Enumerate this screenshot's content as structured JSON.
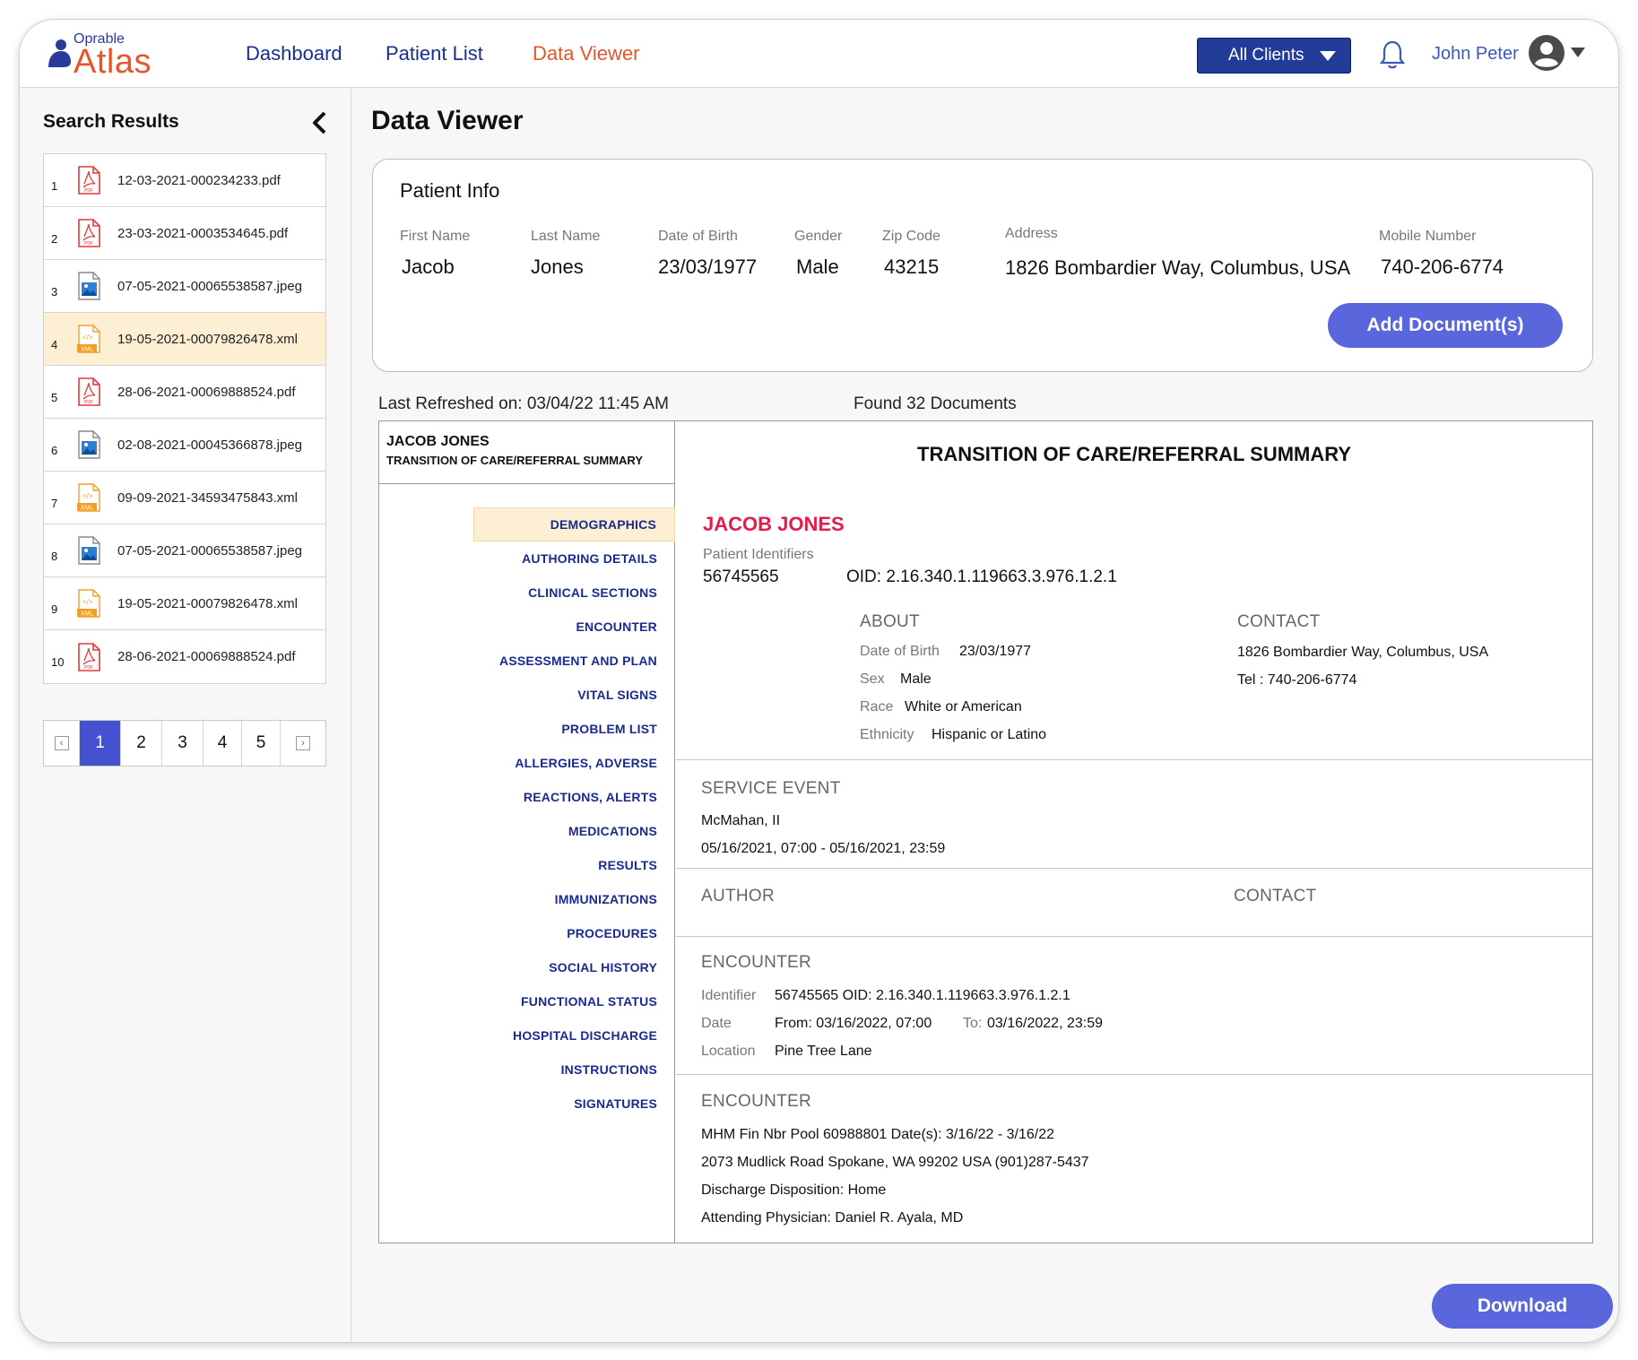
{
  "brand": {
    "top": "Oprable",
    "name": "Atlas",
    "accent": "#e4572e",
    "navy": "#1a2d8c"
  },
  "nav": [
    {
      "label": "Dashboard",
      "active": false
    },
    {
      "label": "Patient List",
      "active": false
    },
    {
      "label": "Data Viewer",
      "active": true
    }
  ],
  "header": {
    "client_select": "All Clients",
    "user_name": "John Peter"
  },
  "sidebar": {
    "title": "Search Results",
    "files": [
      {
        "num": "1",
        "name": "12-03-2021-000234233.pdf",
        "type": "pdf"
      },
      {
        "num": "2",
        "name": "23-03-2021-0003534645.pdf",
        "type": "pdf"
      },
      {
        "num": "3",
        "name": "07-05-2021-00065538587.jpeg",
        "type": "jpeg"
      },
      {
        "num": "4",
        "name": "19-05-2021-00079826478.xml",
        "type": "xml",
        "selected": true
      },
      {
        "num": "5",
        "name": "28-06-2021-00069888524.pdf",
        "type": "pdf"
      },
      {
        "num": "6",
        "name": "02-08-2021-00045366878.jpeg",
        "type": "jpeg"
      },
      {
        "num": "7",
        "name": "09-09-2021-34593475843.xml",
        "type": "xml"
      },
      {
        "num": "8",
        "name": "07-05-2021-00065538587.jpeg",
        "type": "jpeg"
      },
      {
        "num": "9",
        "name": "19-05-2021-00079826478.xml",
        "type": "xml"
      },
      {
        "num": "10",
        "name": "28-06-2021-00069888524.pdf",
        "type": "pdf"
      }
    ],
    "pages": [
      "1",
      "2",
      "3",
      "4",
      "5"
    ],
    "current_page": "1"
  },
  "main": {
    "title": "Data Viewer",
    "patient_info": {
      "title": "Patient Info",
      "fields": [
        {
          "label": "First Name",
          "value": "Jacob"
        },
        {
          "label": "Last Name",
          "value": "Jones"
        },
        {
          "label": "Date of Birth",
          "value": "23/03/1977"
        },
        {
          "label": "Gender",
          "value": "Male"
        },
        {
          "label": "Zip Code",
          "value": "43215"
        },
        {
          "label": "Address",
          "value": "1826 Bombardier Way, Columbus, USA"
        },
        {
          "label": "Mobile Number",
          "value": "740-206-6774"
        }
      ],
      "add_button": "Add Document(s)"
    },
    "last_refreshed": "Last Refreshed on: 03/04/22  11:45 AM",
    "found": "Found 32 Documents",
    "download": "Download"
  },
  "viewer": {
    "toc_header": {
      "name": "JACOB JONES",
      "sub": "TRANSITION OF CARE/REFERRAL SUMMARY"
    },
    "toc": [
      "DEMOGRAPHICS",
      "AUTHORING DETAILS",
      "CLINICAL SECTIONS",
      "ENCOUNTER",
      "ASSESSMENT AND PLAN",
      "VITAL SIGNS",
      "PROBLEM LIST",
      "ALLERGIES, ADVERSE",
      "REACTIONS, ALERTS",
      "MEDICATIONS",
      "RESULTS",
      "IMMUNIZATIONS",
      "PROCEDURES",
      "SOCIAL HISTORY",
      "FUNCTIONAL STATUS",
      "HOSPITAL DISCHARGE",
      "INSTRUCTIONS",
      "SIGNATURES"
    ],
    "doc_title": "TRANSITION OF CARE/REFERRAL SUMMARY",
    "patient_name": "JACOB JONES",
    "identifiers_label": "Patient Identifiers",
    "identifier": "56745565",
    "oid": "OID: 2.16.340.1.119663.3.976.1.2.1",
    "about": {
      "heading": "ABOUT",
      "rows": [
        {
          "label": "Date of Birth",
          "value": "23/03/1977"
        },
        {
          "label": "Sex",
          "value": "Male"
        },
        {
          "label": "Race",
          "value": "White or American"
        },
        {
          "label": "Ethnicity",
          "value": "Hispanic or Latino"
        }
      ]
    },
    "contact": {
      "heading": "CONTACT",
      "address": "1826 Bombardier Way, Columbus, USA",
      "tel": "Tel : 740-206-6774"
    },
    "service_event": {
      "heading": "SERVICE EVENT",
      "line1": "McMahan, II",
      "line2": "05/16/2021, 07:00 - 05/16/2021, 23:59"
    },
    "author": {
      "heading": "AUTHOR",
      "contact_heading": "CONTACT"
    },
    "encounter1": {
      "heading": "ENCOUNTER",
      "identifier_label": "Identifier",
      "identifier": "56745565 OID: 2.16.340.1.119663.3.976.1.2.1",
      "date_label": "Date",
      "from": "From: 03/16/2022, 07:00",
      "to_label": "To:",
      "to": "03/16/2022, 23:59",
      "location_label": "Location",
      "location": "Pine Tree Lane"
    },
    "encounter2": {
      "heading": "ENCOUNTER",
      "lines": [
        "MHM Fin Nbr Pool 60988801 Date(s): 3/16/22 - 3/16/22",
        "2073 Mudlick Road Spokane, WA 99202 USA (901)287-5437",
        "Discharge Disposition: Home",
        "Attending Physician: Daniel R. Ayala, MD"
      ]
    }
  }
}
